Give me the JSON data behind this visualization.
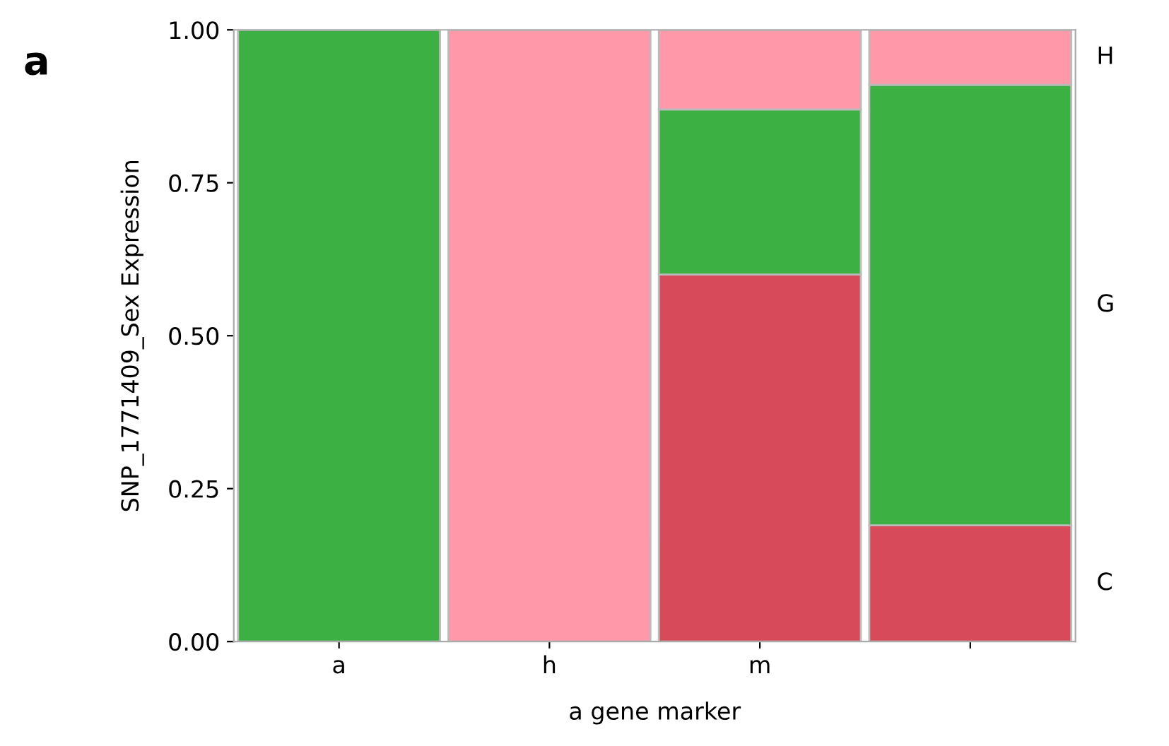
{
  "chart_data": {
    "type": "bar",
    "stacked": true,
    "xlabel": "a gene marker",
    "ylabel": "SNP_1771409_Sex Expression",
    "categories": [
      "a",
      "h",
      "m",
      null
    ],
    "series": [
      {
        "name": "C",
        "color": "#d64a5a",
        "values": [
          null,
          null,
          0.6,
          0.19
        ]
      },
      {
        "name": "G",
        "color": "#3cb043",
        "values": [
          1.0,
          null,
          0.27,
          0.72
        ]
      },
      {
        "name": "H",
        "color": "#ff98a8",
        "values": [
          null,
          1.0,
          0.13,
          0.09
        ]
      }
    ],
    "ylim": [
      0,
      1
    ],
    "yticks": [
      {
        "value": 0,
        "label": "0.00"
      },
      {
        "value": 0.25,
        "label": "0.25"
      },
      {
        "value": 0.5,
        "label": "0.50"
      },
      {
        "value": 0.75,
        "label": "0.75"
      },
      {
        "value": 1,
        "label": "1.00"
      }
    ],
    "grid": false,
    "annotations": [
      "a"
    ]
  }
}
